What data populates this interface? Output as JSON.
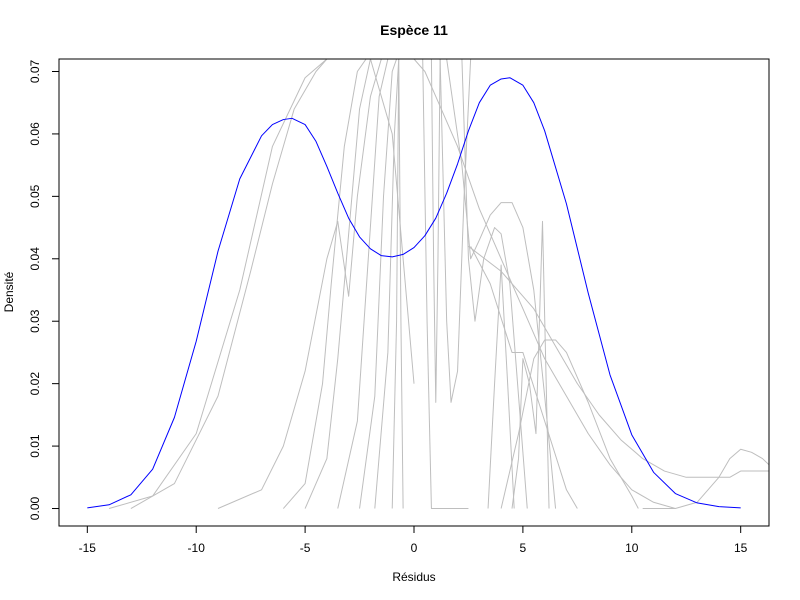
{
  "chart_data": {
    "type": "line",
    "title": "Espèce 11",
    "xlabel": "Résidus",
    "ylabel": "Densité",
    "xlim": [
      -16.3,
      16.3
    ],
    "ylim": [
      -0.0028,
      0.072
    ],
    "x_ticks": [
      -15,
      -10,
      -5,
      0,
      5,
      10,
      15
    ],
    "x_tick_labels": [
      "-15",
      "-10",
      "-5",
      "0",
      "5",
      "10",
      "15"
    ],
    "y_ticks": [
      0.0,
      0.01,
      0.02,
      0.03,
      0.04,
      0.05,
      0.06,
      0.07
    ],
    "y_tick_labels": [
      "0.00",
      "0.01",
      "0.02",
      "0.03",
      "0.04",
      "0.05",
      "0.06",
      "0.07"
    ],
    "grid": false,
    "legend": "none",
    "colors": {
      "main": "#0000ff",
      "background": "#bebebe",
      "axis": "#000000"
    },
    "series": [
      {
        "color": "#0000ff",
        "x": [
          -15,
          -14,
          -13,
          -12,
          -11,
          -10,
          -9,
          -8,
          -7,
          -6.5,
          -6,
          -5.6,
          -5,
          -4.5,
          -4,
          -3.5,
          -3,
          -2.5,
          -2,
          -1.5,
          -1,
          -0.5,
          0,
          0.5,
          1,
          1.5,
          2,
          2.5,
          3,
          3.5,
          4,
          4.4,
          5,
          5.5,
          6,
          7,
          8,
          9,
          10,
          11,
          12,
          13,
          14,
          15
        ],
        "y": [
          0.0001,
          0.0006,
          0.0022,
          0.0063,
          0.0146,
          0.0268,
          0.0412,
          0.0528,
          0.0597,
          0.0615,
          0.0623,
          0.0625,
          0.0615,
          0.0588,
          0.0548,
          0.0505,
          0.0465,
          0.0435,
          0.0416,
          0.0405,
          0.0403,
          0.0407,
          0.0418,
          0.0437,
          0.0465,
          0.0505,
          0.0552,
          0.0605,
          0.065,
          0.0678,
          0.0688,
          0.069,
          0.0678,
          0.065,
          0.0605,
          0.0488,
          0.0345,
          0.0214,
          0.0118,
          0.0058,
          0.0024,
          0.0009,
          0.0003,
          0.0001
        ]
      },
      {
        "color": "#bebebe",
        "x": [
          -14,
          -12,
          -10,
          -8,
          -6.5,
          -5,
          -4,
          -3,
          -2,
          -1,
          0
        ],
        "y": [
          0.0,
          0.002,
          0.012,
          0.035,
          0.058,
          0.069,
          0.072,
          0.072,
          0.072,
          0.06,
          0.02
        ]
      },
      {
        "color": "#bebebe",
        "x": [
          -13,
          -11,
          -9,
          -7.5,
          -6.5,
          -5.5,
          -4.5,
          -4
        ],
        "y": [
          0.0,
          0.004,
          0.018,
          0.038,
          0.052,
          0.064,
          0.07,
          0.072
        ]
      },
      {
        "color": "#bebebe",
        "x": [
          -9,
          -7,
          -6,
          -5,
          -4,
          -3.5,
          -3,
          -2.6,
          -2,
          -1.5,
          -1
        ],
        "y": [
          0.0,
          0.003,
          0.01,
          0.022,
          0.04,
          0.046,
          0.034,
          0.05,
          0.066,
          0.072,
          0.072
        ]
      },
      {
        "color": "#bebebe",
        "x": [
          -6,
          -5,
          -4.2,
          -3.8,
          -3.2,
          -2.6,
          -2.2
        ],
        "y": [
          0.0,
          0.004,
          0.02,
          0.036,
          0.058,
          0.07,
          0.072
        ]
      },
      {
        "color": "#bebebe",
        "x": [
          -5,
          -4,
          -3.5,
          -3,
          -2.5,
          -2
        ],
        "y": [
          0.0,
          0.008,
          0.024,
          0.044,
          0.064,
          0.072
        ]
      },
      {
        "color": "#bebebe",
        "x": [
          -3.5,
          -2.6,
          -2.1,
          -1.6,
          -1.2
        ],
        "y": [
          0.0,
          0.014,
          0.04,
          0.066,
          0.072
        ]
      },
      {
        "color": "#bebebe",
        "x": [
          -2.5,
          -1.8,
          -1.4,
          -1.0,
          -0.8
        ],
        "y": [
          0.0,
          0.018,
          0.05,
          0.07,
          0.072
        ]
      },
      {
        "color": "#bebebe",
        "x": [
          -1.8,
          -1.2,
          -0.9,
          -0.7
        ],
        "y": [
          0.0,
          0.025,
          0.06,
          0.072
        ]
      },
      {
        "color": "#bebebe",
        "x": [
          -1.0,
          -0.8,
          -0.7,
          -0.6,
          -0.5
        ],
        "y": [
          0.0,
          0.03,
          0.072,
          0.03,
          0.0
        ]
      },
      {
        "color": "#bebebe",
        "x": [
          0.4,
          0.6,
          0.8,
          1.0,
          1.2,
          1.4,
          1.6,
          1.8,
          2.2,
          2.5
        ],
        "y": [
          0.072,
          0.03,
          0.0,
          0.0,
          0.0,
          0.0,
          0.0,
          0.0,
          0.0,
          0.0
        ]
      },
      {
        "color": "#bebebe",
        "x": [
          0.8,
          0.9,
          1.0,
          1.1,
          1.2
        ],
        "y": [
          0.072,
          0.04,
          0.017,
          0.04,
          0.072
        ]
      },
      {
        "color": "#bebebe",
        "x": [
          1.2,
          1.5,
          1.7,
          2.0,
          2.3,
          2.6
        ],
        "y": [
          0.072,
          0.03,
          0.017,
          0.022,
          0.05,
          0.072
        ]
      },
      {
        "color": "#bebebe",
        "x": [
          1.5,
          2.2,
          2.6,
          3.0,
          3.5,
          4.0,
          4.5,
          5.0,
          5.5,
          6.0,
          6.5
        ],
        "y": [
          0.072,
          0.055,
          0.04,
          0.043,
          0.047,
          0.049,
          0.049,
          0.045,
          0.035,
          0.018,
          0.0
        ]
      },
      {
        "color": "#bebebe",
        "x": [
          2.2,
          2.5,
          2.8,
          3.2,
          3.7,
          4.0,
          4.4,
          4.8,
          5.2
        ],
        "y": [
          0.072,
          0.04,
          0.03,
          0.04,
          0.045,
          0.044,
          0.036,
          0.018,
          0.0
        ]
      },
      {
        "color": "#bebebe",
        "x": [
          3.4,
          3.7,
          4.0,
          4.3,
          4.6
        ],
        "y": [
          0.0,
          0.02,
          0.039,
          0.02,
          0.0
        ]
      },
      {
        "color": "#bebebe",
        "x": [
          4.5,
          4.8,
          5.0,
          5.3,
          5.6,
          5.9,
          6.2
        ],
        "y": [
          0.0,
          0.008,
          0.024,
          0.02,
          0.012,
          0.046,
          0.0
        ]
      },
      {
        "color": "#bebebe",
        "x": [
          2.6,
          3.5,
          4.5,
          5.0,
          6.0,
          7.0,
          7.5
        ],
        "y": [
          0.042,
          0.036,
          0.025,
          0.025,
          0.014,
          0.003,
          0.0
        ]
      },
      {
        "color": "#bebebe",
        "x": [
          4.0,
          4.8,
          5.5,
          6.0,
          6.5,
          7.0,
          8.0,
          9.0,
          10.0,
          10.3
        ],
        "y": [
          0.0,
          0.012,
          0.024,
          0.027,
          0.027,
          0.025,
          0.017,
          0.008,
          0.002,
          0.0
        ]
      },
      {
        "color": "#bebebe",
        "x": [
          2.5,
          4.0,
          5.5,
          6.5,
          7.5,
          8.5,
          9.5,
          10.5,
          11.5,
          12.5,
          13.5,
          14.5,
          15.0,
          15.5,
          16.3
        ],
        "y": [
          0.042,
          0.038,
          0.032,
          0.026,
          0.02,
          0.015,
          0.011,
          0.008,
          0.006,
          0.005,
          0.005,
          0.005,
          0.006,
          0.006,
          0.006
        ]
      },
      {
        "color": "#bebebe",
        "x": [
          10.5,
          12.0,
          13.0,
          14.0,
          14.5,
          15.0,
          15.5,
          16.0,
          16.3
        ],
        "y": [
          0.0,
          0.0,
          0.001,
          0.005,
          0.008,
          0.0095,
          0.009,
          0.008,
          0.007
        ]
      },
      {
        "color": "#bebebe",
        "x": [
          0.0,
          0.5,
          1.0,
          2.0,
          3.0,
          4.0,
          5.0,
          6.0,
          7.0,
          8.0,
          9.0,
          10.0,
          11.0,
          12.0
        ],
        "y": [
          0.072,
          0.07,
          0.066,
          0.058,
          0.048,
          0.04,
          0.032,
          0.024,
          0.018,
          0.012,
          0.007,
          0.003,
          0.001,
          0.0
        ]
      }
    ]
  }
}
